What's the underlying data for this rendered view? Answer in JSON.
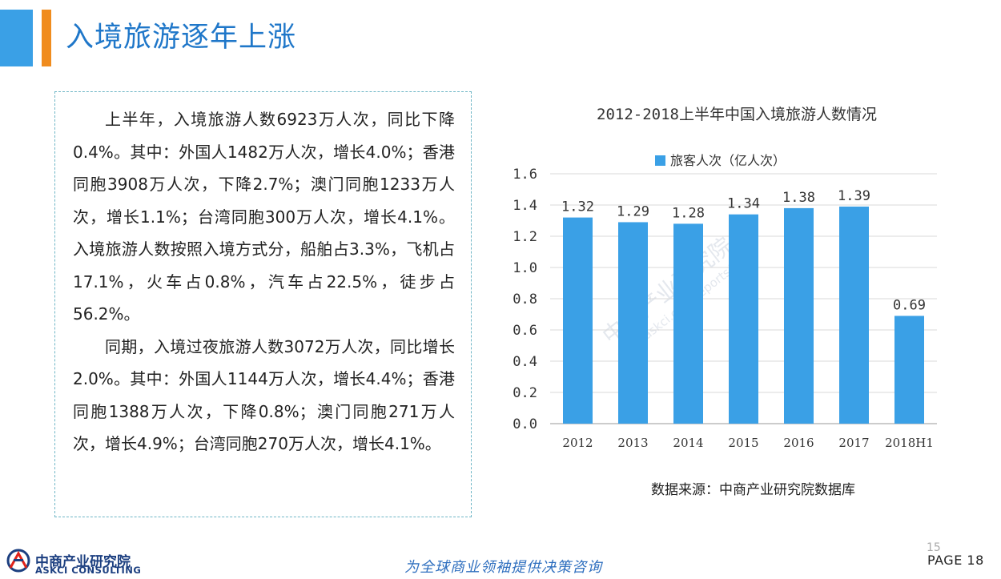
{
  "header": {
    "title": "入境旅游逐年上涨"
  },
  "text": {
    "paragraphs": [
      "上半年，入境旅游人数6923万人次，同比下降0.4%。其中：外国人1482万人次，增长4.0%；香港同胞3908万人次，下降2.7%；澳门同胞1233万人次，增长1.1%；台湾同胞300万人次，增长4.1%。入境旅游人数按照入境方式分，船舶占3.3%，飞机占17.1%，火车占0.8%，汽车占22.5%，徒步占56.2%。",
      "同期，入境过夜旅游人数3072万人次，同比增长2.0%。其中：外国人1144万人次，增长4.4%；香港同胞1388万人次，下降0.8%；澳门同胞271万人次，增长4.9%；台湾同胞270万人次，增长4.1%。"
    ]
  },
  "chart_data": {
    "type": "bar",
    "title": "2012-2018上半年中国入境旅游人数情况",
    "categories": [
      "2012",
      "2013",
      "2014",
      "2015",
      "2016",
      "2017",
      "2018H1"
    ],
    "series": [
      {
        "name": "旅客人次（亿人次）",
        "values": [
          1.32,
          1.29,
          1.28,
          1.34,
          1.38,
          1.39,
          0.69
        ]
      }
    ],
    "data_labels": [
      "1.32",
      "1.29",
      "1.28",
      "1.34",
      "1.38",
      "1.39",
      "0.69"
    ],
    "ylim": [
      0,
      1.6
    ],
    "yticks": [
      "0.0",
      "0.2",
      "0.4",
      "0.6",
      "0.8",
      "1.0",
      "1.2",
      "1.4",
      "1.6"
    ],
    "grid": true,
    "legend_position": "top",
    "bar_color": "#3aa0e6"
  },
  "source": "数据来源：中商产业研究院数据库",
  "watermark": {
    "name": "中商产业研究院",
    "url": "www.askci.com/reports/"
  },
  "footer": {
    "logo_cn": "中商产业研究院",
    "logo_en": "ASKCI CONSULTING",
    "slogan": "为全球商业领袖提供决策咨询",
    "page_small": "15",
    "page_label": "PAGE 18"
  },
  "colors": {
    "accent_blue": "#3aa0e6",
    "accent_orange": "#f08c1e",
    "title_blue": "#1f77c9"
  }
}
